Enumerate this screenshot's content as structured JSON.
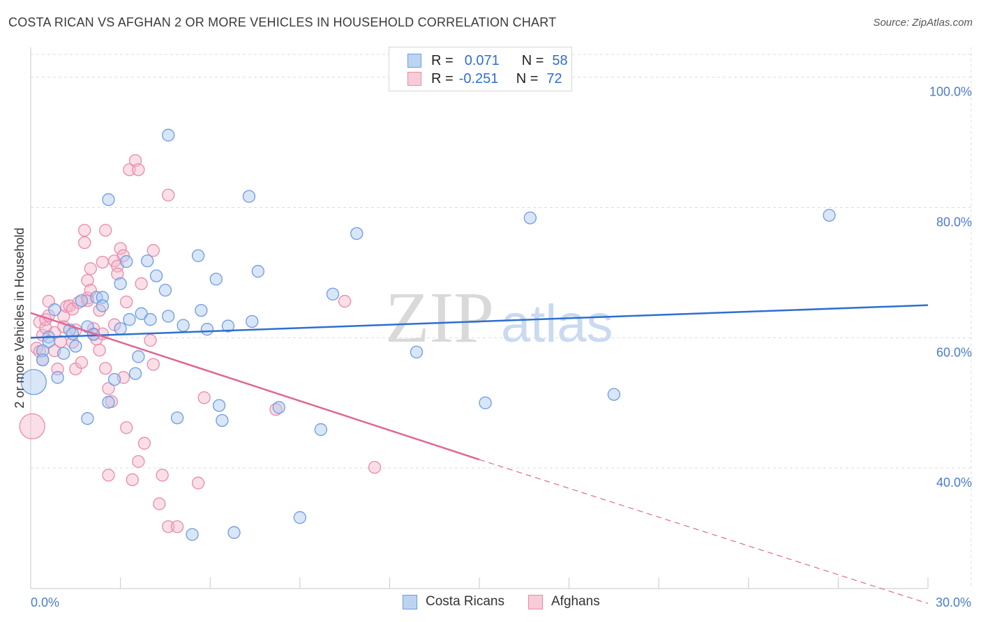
{
  "header": {
    "title": "COSTA RICAN VS AFGHAN 2 OR MORE VEHICLES IN HOUSEHOLD CORRELATION CHART",
    "source": "Source: ZipAtlas.com"
  },
  "legend": {
    "rows": [
      {
        "r_label": "R =",
        "r_value": "0.071",
        "n_label": "N =",
        "n_value": "58"
      },
      {
        "r_label": "R =",
        "r_value": "-0.251",
        "n_label": "N =",
        "n_value": "72"
      }
    ]
  },
  "bottom_legend": {
    "series_a": "Costa Ricans",
    "series_b": "Afghans"
  },
  "watermark": {
    "zip": "ZIP",
    "atlas": "atlas"
  },
  "colors": {
    "blue_fill": "#a9c8f0",
    "blue_stroke": "#6d9be0",
    "blue_line": "#2e6fd0",
    "pink_fill": "#f4b8cb",
    "pink_stroke": "#e98aa8",
    "pink_line": "#e06694",
    "grid": "#dcdcdc",
    "tick_text": "#4a7cc9"
  },
  "chart_data": {
    "type": "scatter",
    "title": "COSTA RICAN VS AFGHAN 2 OR MORE VEHICLES IN HOUSEHOLD CORRELATION CHART",
    "xlabel": "",
    "ylabel": "2 or more Vehicles in Household",
    "xlim": [
      0,
      30
    ],
    "ylim": [
      21.5,
      103.5
    ],
    "x_tick_labels": [
      {
        "value": 0,
        "label": "0.0%"
      },
      {
        "value": 30,
        "label": "30.0%"
      }
    ],
    "y_ticks": [
      {
        "value": 40,
        "label": "40.0%"
      },
      {
        "value": 60,
        "label": "60.0%"
      },
      {
        "value": 80,
        "label": "80.0%"
      },
      {
        "value": 100,
        "label": "100.0%"
      }
    ],
    "series": [
      {
        "name": "Costa Ricans",
        "r": 0.071,
        "n": 58,
        "trend": {
          "x": [
            0,
            30
          ],
          "y": [
            60.0,
            65.0
          ]
        },
        "points": [
          {
            "x": 0.1,
            "y": 53.2,
            "big": true
          },
          {
            "x": 0.4,
            "y": 58.0
          },
          {
            "x": 0.4,
            "y": 56.6
          },
          {
            "x": 0.6,
            "y": 60.1
          },
          {
            "x": 0.6,
            "y": 59.4
          },
          {
            "x": 0.8,
            "y": 64.3
          },
          {
            "x": 0.9,
            "y": 53.9
          },
          {
            "x": 1.1,
            "y": 57.6
          },
          {
            "x": 1.3,
            "y": 61.2
          },
          {
            "x": 1.5,
            "y": 58.7
          },
          {
            "x": 1.4,
            "y": 60.6
          },
          {
            "x": 1.7,
            "y": 65.7
          },
          {
            "x": 1.9,
            "y": 61.7
          },
          {
            "x": 1.9,
            "y": 47.6
          },
          {
            "x": 2.1,
            "y": 60.5
          },
          {
            "x": 2.2,
            "y": 66.2
          },
          {
            "x": 2.4,
            "y": 66.2
          },
          {
            "x": 2.4,
            "y": 64.9
          },
          {
            "x": 2.6,
            "y": 81.2
          },
          {
            "x": 2.6,
            "y": 50.1
          },
          {
            "x": 2.8,
            "y": 53.6
          },
          {
            "x": 3.0,
            "y": 61.4
          },
          {
            "x": 3.0,
            "y": 68.3
          },
          {
            "x": 3.2,
            "y": 71.7
          },
          {
            "x": 3.3,
            "y": 62.8
          },
          {
            "x": 3.5,
            "y": 54.5
          },
          {
            "x": 3.6,
            "y": 57.1
          },
          {
            "x": 3.7,
            "y": 63.7
          },
          {
            "x": 3.9,
            "y": 71.8
          },
          {
            "x": 4.0,
            "y": 62.8
          },
          {
            "x": 4.2,
            "y": 69.5
          },
          {
            "x": 4.5,
            "y": 67.3
          },
          {
            "x": 4.6,
            "y": 63.3
          },
          {
            "x": 4.6,
            "y": 91.1
          },
          {
            "x": 4.9,
            "y": 47.7
          },
          {
            "x": 5.1,
            "y": 61.9
          },
          {
            "x": 5.4,
            "y": 29.8
          },
          {
            "x": 5.6,
            "y": 72.6
          },
          {
            "x": 5.7,
            "y": 64.2
          },
          {
            "x": 5.9,
            "y": 61.3
          },
          {
            "x": 6.2,
            "y": 69.0
          },
          {
            "x": 6.3,
            "y": 49.6
          },
          {
            "x": 6.4,
            "y": 47.3
          },
          {
            "x": 6.6,
            "y": 61.8
          },
          {
            "x": 6.8,
            "y": 30.1
          },
          {
            "x": 7.3,
            "y": 81.7
          },
          {
            "x": 7.4,
            "y": 62.5
          },
          {
            "x": 7.6,
            "y": 70.2
          },
          {
            "x": 8.3,
            "y": 49.3
          },
          {
            "x": 9.0,
            "y": 32.4
          },
          {
            "x": 9.7,
            "y": 45.9
          },
          {
            "x": 10.1,
            "y": 66.7
          },
          {
            "x": 10.9,
            "y": 76.0
          },
          {
            "x": 12.9,
            "y": 57.8
          },
          {
            "x": 15.2,
            "y": 50.0
          },
          {
            "x": 16.7,
            "y": 78.4
          },
          {
            "x": 19.5,
            "y": 51.3
          },
          {
            "x": 26.7,
            "y": 78.8
          }
        ]
      },
      {
        "name": "Afghans",
        "r": -0.251,
        "n": 72,
        "trend": {
          "x": [
            0,
            15.0
          ],
          "y": [
            63.8,
            41.3
          ]
        },
        "trend_dashed": {
          "x": [
            15.0,
            30
          ],
          "y": [
            41.3,
            19.2
          ]
        },
        "points": [
          {
            "x": 0.05,
            "y": 46.4,
            "big": true
          },
          {
            "x": 0.2,
            "y": 58.4
          },
          {
            "x": 0.3,
            "y": 62.4
          },
          {
            "x": 0.3,
            "y": 57.9
          },
          {
            "x": 0.4,
            "y": 56.6
          },
          {
            "x": 0.4,
            "y": 60.4
          },
          {
            "x": 0.5,
            "y": 61.5
          },
          {
            "x": 0.5,
            "y": 62.8
          },
          {
            "x": 0.6,
            "y": 65.6
          },
          {
            "x": 0.6,
            "y": 63.4
          },
          {
            "x": 0.8,
            "y": 60.8
          },
          {
            "x": 0.8,
            "y": 58.0
          },
          {
            "x": 0.9,
            "y": 55.2
          },
          {
            "x": 1.0,
            "y": 59.4
          },
          {
            "x": 1.1,
            "y": 63.3
          },
          {
            "x": 1.1,
            "y": 61.7
          },
          {
            "x": 1.2,
            "y": 64.8
          },
          {
            "x": 1.3,
            "y": 64.9
          },
          {
            "x": 1.4,
            "y": 64.4
          },
          {
            "x": 1.4,
            "y": 59.3
          },
          {
            "x": 1.5,
            "y": 61.2
          },
          {
            "x": 1.5,
            "y": 55.2
          },
          {
            "x": 1.6,
            "y": 65.4
          },
          {
            "x": 1.7,
            "y": 56.2
          },
          {
            "x": 1.8,
            "y": 76.5
          },
          {
            "x": 1.8,
            "y": 74.6
          },
          {
            "x": 1.9,
            "y": 68.8
          },
          {
            "x": 1.9,
            "y": 66.1
          },
          {
            "x": 1.9,
            "y": 65.7
          },
          {
            "x": 2.0,
            "y": 70.6
          },
          {
            "x": 2.0,
            "y": 67.3
          },
          {
            "x": 2.1,
            "y": 61.4
          },
          {
            "x": 2.1,
            "y": 60.6
          },
          {
            "x": 2.2,
            "y": 59.8
          },
          {
            "x": 2.3,
            "y": 64.2
          },
          {
            "x": 2.3,
            "y": 58.1
          },
          {
            "x": 2.4,
            "y": 71.6
          },
          {
            "x": 2.4,
            "y": 60.6
          },
          {
            "x": 2.5,
            "y": 76.5
          },
          {
            "x": 2.5,
            "y": 55.3
          },
          {
            "x": 2.6,
            "y": 52.2
          },
          {
            "x": 2.6,
            "y": 38.9
          },
          {
            "x": 2.7,
            "y": 50.2
          },
          {
            "x": 2.8,
            "y": 71.8
          },
          {
            "x": 2.8,
            "y": 62.0
          },
          {
            "x": 2.9,
            "y": 71.0
          },
          {
            "x": 2.9,
            "y": 69.8
          },
          {
            "x": 3.0,
            "y": 73.7
          },
          {
            "x": 3.1,
            "y": 72.6
          },
          {
            "x": 3.1,
            "y": 53.9
          },
          {
            "x": 3.2,
            "y": 65.5
          },
          {
            "x": 3.2,
            "y": 46.2
          },
          {
            "x": 3.3,
            "y": 85.8
          },
          {
            "x": 3.4,
            "y": 38.2
          },
          {
            "x": 3.5,
            "y": 87.2
          },
          {
            "x": 3.6,
            "y": 85.8
          },
          {
            "x": 3.6,
            "y": 41.0
          },
          {
            "x": 3.7,
            "y": 68.3
          },
          {
            "x": 3.8,
            "y": 43.8
          },
          {
            "x": 4.0,
            "y": 59.6
          },
          {
            "x": 4.1,
            "y": 55.9
          },
          {
            "x": 4.1,
            "y": 73.4
          },
          {
            "x": 4.3,
            "y": 34.5
          },
          {
            "x": 4.4,
            "y": 38.9
          },
          {
            "x": 4.6,
            "y": 31.0
          },
          {
            "x": 4.6,
            "y": 81.9
          },
          {
            "x": 4.9,
            "y": 31.0
          },
          {
            "x": 5.6,
            "y": 37.7
          },
          {
            "x": 5.8,
            "y": 50.8
          },
          {
            "x": 8.2,
            "y": 49.0
          },
          {
            "x": 10.5,
            "y": 65.6
          },
          {
            "x": 11.5,
            "y": 40.1
          }
        ]
      }
    ]
  }
}
